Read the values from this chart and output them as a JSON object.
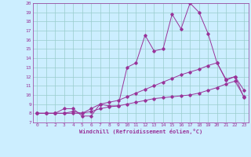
{
  "xlabel": "Windchill (Refroidissement éolien,°C)",
  "bg_color": "#cceeff",
  "line_color": "#993399",
  "grid_color": "#99cccc",
  "x_data": [
    0,
    1,
    2,
    3,
    4,
    5,
    6,
    7,
    8,
    9,
    10,
    11,
    12,
    13,
    14,
    15,
    16,
    17,
    18,
    19,
    20,
    21,
    22,
    23
  ],
  "series1": [
    8.0,
    8.0,
    8.0,
    8.5,
    8.5,
    7.7,
    7.7,
    9.0,
    8.8,
    8.8,
    13.0,
    13.5,
    16.5,
    14.8,
    15.0,
    18.8,
    17.2,
    20.0,
    19.0,
    16.7,
    13.5,
    11.7,
    12.0,
    10.5
  ],
  "series2": [
    8.0,
    8.0,
    8.0,
    8.0,
    8.2,
    8.0,
    8.5,
    9.0,
    9.2,
    9.4,
    9.8,
    10.2,
    10.6,
    11.0,
    11.4,
    11.8,
    12.2,
    12.5,
    12.8,
    13.2,
    13.5,
    11.6,
    12.0,
    9.7
  ],
  "series3": [
    8.0,
    8.0,
    8.0,
    8.0,
    8.0,
    8.0,
    8.2,
    8.5,
    8.7,
    8.8,
    9.0,
    9.2,
    9.4,
    9.6,
    9.7,
    9.8,
    9.9,
    10.0,
    10.2,
    10.5,
    10.8,
    11.2,
    11.5,
    9.8
  ],
  "xlim": [
    -0.5,
    23.5
  ],
  "ylim": [
    7,
    20
  ],
  "yticks": [
    7,
    8,
    9,
    10,
    11,
    12,
    13,
    14,
    15,
    16,
    17,
    18,
    19,
    20
  ],
  "xticks": [
    0,
    1,
    2,
    3,
    4,
    5,
    6,
    7,
    8,
    9,
    10,
    11,
    12,
    13,
    14,
    15,
    16,
    17,
    18,
    19,
    20,
    21,
    22,
    23
  ]
}
